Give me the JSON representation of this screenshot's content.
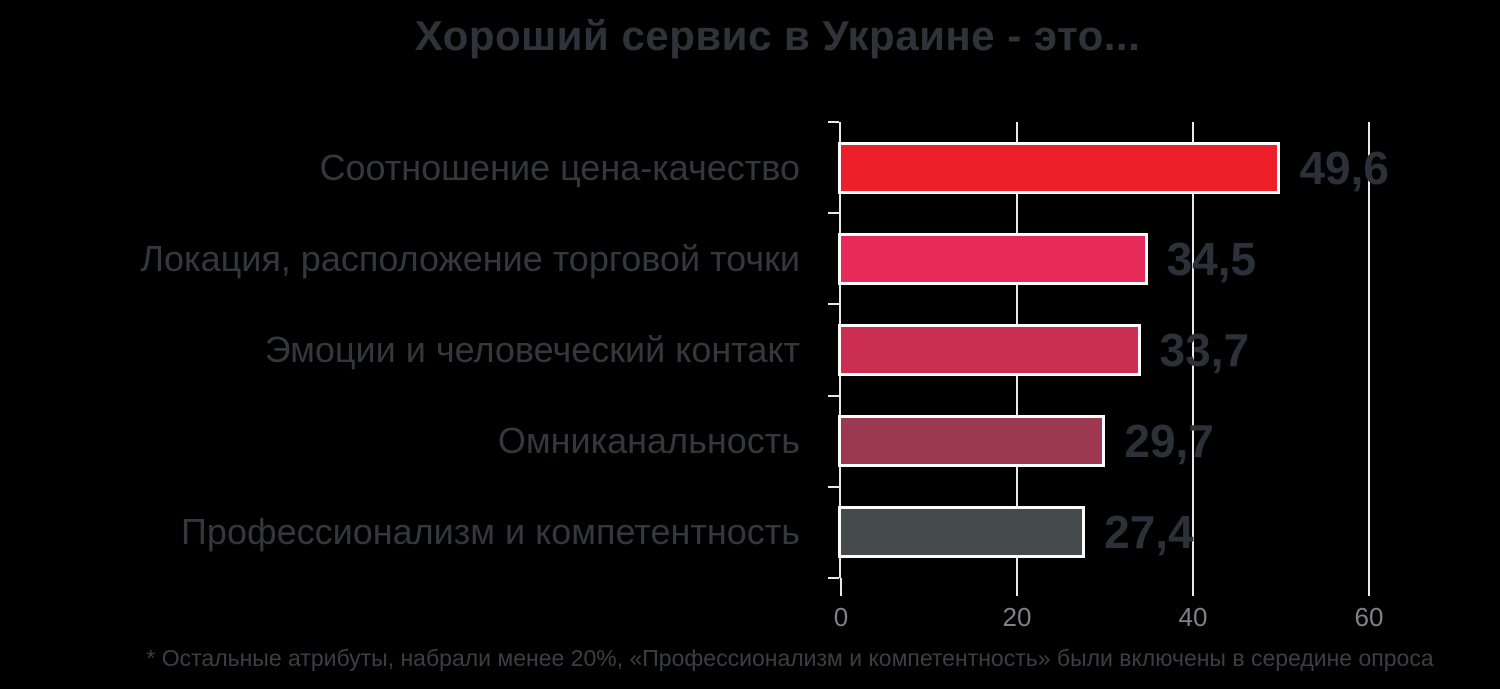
{
  "title": "Хороший сервис в Украине - это...",
  "footnote": "* Остальные атрибуты, набрали  менее 20%, «Профессионализм и компетентность» были включены в середине опроса",
  "colors": {
    "background": "#000000",
    "title_text": "#2e3239",
    "category_text": "#33373e",
    "value_text": "#2c3038",
    "tick_text": "#7c8289",
    "axis_grid": "#eae8e8",
    "bar_stroke": "#fcfcfc"
  },
  "chart_data": {
    "type": "bar",
    "orientation": "horizontal",
    "title": "Хороший сервис в Украине - это...",
    "categories": [
      "Соотношение цена-качество",
      "Локация, расположение торговой точки",
      "Эмоции и человеческий контакт",
      "Омниканальность",
      "Профессионализм и компетентность"
    ],
    "values": [
      49.6,
      34.5,
      33.7,
      29.7,
      27.4
    ],
    "value_labels": [
      "49,6",
      "34,5",
      "33,7",
      "29,7",
      "27,4"
    ],
    "bar_colors": [
      "#ed1f2b",
      "#e62a5a",
      "#cb2d53",
      "#9c3950",
      "#454b4b"
    ],
    "x_ticks": [
      0,
      20,
      40,
      60
    ],
    "x_tick_labels": [
      "0",
      "20",
      "40",
      "60"
    ],
    "xlim": [
      0,
      67
    ],
    "xlabel": "",
    "ylabel": "",
    "grid": true,
    "legend": false
  }
}
